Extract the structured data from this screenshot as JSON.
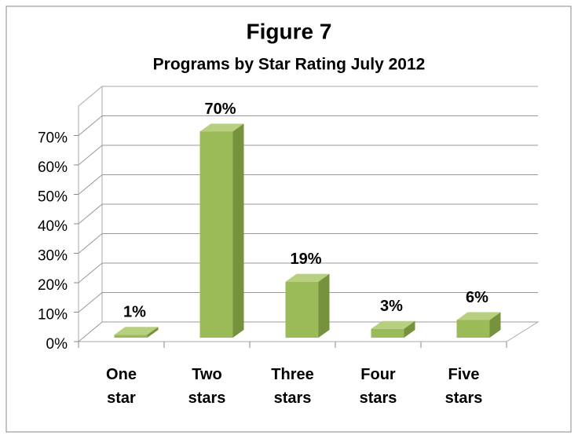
{
  "chart_data": {
    "type": "bar3d",
    "title": "Figure 7",
    "subtitle": "Programs by Star Rating July 2012",
    "categories": [
      "One star",
      "Two stars",
      "Three stars",
      "Four stars",
      "Five stars"
    ],
    "values": [
      1,
      70,
      19,
      3,
      6
    ],
    "value_labels": [
      "1%",
      "70%",
      "19%",
      "3%",
      "6%"
    ],
    "color": "#9bbb59",
    "ylim": [
      0,
      80
    ],
    "yticks": [
      {
        "value": 0,
        "label": "0%"
      },
      {
        "value": 10,
        "label": "10%"
      },
      {
        "value": 20,
        "label": "20%"
      },
      {
        "value": 30,
        "label": "30%"
      },
      {
        "value": 40,
        "label": "40%"
      },
      {
        "value": 50,
        "label": "50%"
      },
      {
        "value": 60,
        "label": "60%"
      },
      {
        "value": 70,
        "label": "70%"
      }
    ],
    "grid": true
  }
}
